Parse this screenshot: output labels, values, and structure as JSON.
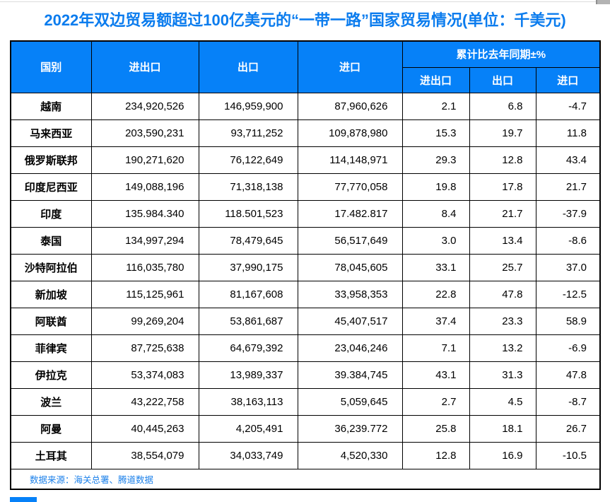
{
  "title": "2022年双边贸易额超过100亿美元的“一带一路”国家贸易情况(单位：千美元)",
  "table": {
    "header": {
      "country": "国别",
      "total": "进出口",
      "export": "出口",
      "import": "进口",
      "yoy_group": "累计比去年同期±%",
      "yoy_total": "进出口",
      "yoy_export": "出口",
      "yoy_import": "进口"
    },
    "rows": [
      {
        "country": "越南",
        "total": "234,920,526",
        "export": "146,959,900",
        "import": "87,960,626",
        "yoy_total": "2.1",
        "yoy_export": "6.8",
        "yoy_import": "-4.7"
      },
      {
        "country": "马来西亚",
        "total": "203,590,231",
        "export": "93,711,252",
        "import": "109,878,980",
        "yoy_total": "15.3",
        "yoy_export": "19.7",
        "yoy_import": "11.8"
      },
      {
        "country": "俄罗斯联邦",
        "total": "190,271,620",
        "export": "76,122,649",
        "import": "114,148,971",
        "yoy_total": "29.3",
        "yoy_export": "12.8",
        "yoy_import": "43.4"
      },
      {
        "country": "印度尼西亚",
        "total": "149,088,196",
        "export": "71,318,138",
        "import": "77,770,058",
        "yoy_total": "19.8",
        "yoy_export": "17.8",
        "yoy_import": "21.7"
      },
      {
        "country": "印度",
        "total": "135.984.340",
        "export": "118.501,523",
        "import": "17.482.817",
        "yoy_total": "8.4",
        "yoy_export": "21.7",
        "yoy_import": "-37.9"
      },
      {
        "country": "泰国",
        "total": "134,997,294",
        "export": "78,479,645",
        "import": "56,517,649",
        "yoy_total": "3.0",
        "yoy_export": "13.4",
        "yoy_import": "-8.6"
      },
      {
        "country": "沙特阿拉伯",
        "total": "116,035,780",
        "export": "37,990,175",
        "import": "78,045,605",
        "yoy_total": "33.1",
        "yoy_export": "25.7",
        "yoy_import": "37.0"
      },
      {
        "country": "新加坡",
        "total": "115,125,961",
        "export": "81,167,608",
        "import": "33,958,353",
        "yoy_total": "22.8",
        "yoy_export": "47.8",
        "yoy_import": "-12.5"
      },
      {
        "country": "阿联酋",
        "total": "99,269,204",
        "export": "53,861,687",
        "import": "45,407,517",
        "yoy_total": "37.4",
        "yoy_export": "23.3",
        "yoy_import": "58.9"
      },
      {
        "country": "菲律宾",
        "total": "87,725,638",
        "export": "64,679,392",
        "import": "23,046,246",
        "yoy_total": "7.1",
        "yoy_export": "13.2",
        "yoy_import": "-6.9"
      },
      {
        "country": "伊拉克",
        "total": "53,374,083",
        "export": "13,989,337",
        "import": "39.384,745",
        "yoy_total": "43.1",
        "yoy_export": "31.3",
        "yoy_import": "47.8"
      },
      {
        "country": "波兰",
        "total": "43,222,758",
        "export": "38,163,113",
        "import": "5,059,645",
        "yoy_total": "2.7",
        "yoy_export": "4.5",
        "yoy_import": "-8.7"
      },
      {
        "country": "阿曼",
        "total": "40,445,263",
        "export": "4,205,491",
        "import": "36,239.772",
        "yoy_total": "25.8",
        "yoy_export": "18.1",
        "yoy_import": "26.7"
      },
      {
        "country": "土耳其",
        "total": "38,554,079",
        "export": "34,033,749",
        "import": "4,520,330",
        "yoy_total": "12.8",
        "yoy_export": "16.9",
        "yoy_import": "-10.5"
      }
    ],
    "source_note": "数据来源：海关总署、腾道数据"
  },
  "colors": {
    "header_bg": "#0681f8",
    "title_text": "#0b7cee",
    "source_text": "#1b80ea",
    "border": "#000000",
    "bottom_bar": "#0681f8"
  }
}
